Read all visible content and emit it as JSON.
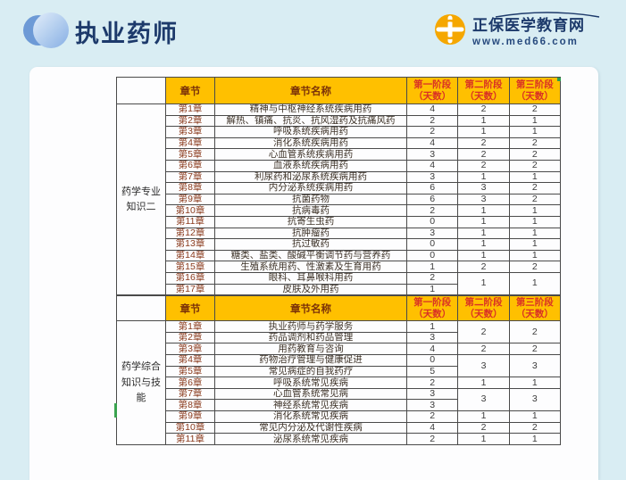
{
  "brand": {
    "title": "执业药师"
  },
  "site_logo": {
    "name": "正保医学教育网",
    "url_text": "www.med66.com",
    "icon": "med66-cross-icon"
  },
  "colors": {
    "background_blue": "#D9EDF3",
    "panel_white": "#FDFDFE",
    "header_orange": "#FFC000",
    "header_label_brown": "#7B3208",
    "header_phase_red": "#D93025",
    "brand_navy": "#1D3A6B",
    "chapter_red_brown": "#8A3A1C"
  },
  "tables": [
    {
      "group_label": "药学专业知识二",
      "headers": [
        "章节",
        "章节名称",
        "第一阶段\n（天数）",
        "第二阶段\n（天数）",
        "第三阶段\n（天数）"
      ],
      "rows": [
        [
          "第1章",
          "精神与中枢神经系统疾病用药",
          "4",
          "2",
          "2"
        ],
        [
          "第2章",
          "解热、镇痛、抗炎、抗风湿药及抗痛风药",
          "2",
          "1",
          "1"
        ],
        [
          "第3章",
          "呼吸系统疾病用药",
          "2",
          "1",
          "1"
        ],
        [
          "第4章",
          "消化系统疾病用药",
          "4",
          "2",
          "2"
        ],
        [
          "第5章",
          "心血管系统疾病用药",
          "3",
          "2",
          "2"
        ],
        [
          "第6章",
          "血液系统疾病用药",
          "4",
          "2",
          "2"
        ],
        [
          "第7章",
          "利尿药和泌尿系统疾病用药",
          "3",
          "1",
          "1"
        ],
        [
          "第8章",
          "内分泌系统疾病用药",
          "6",
          "3",
          "2"
        ],
        [
          "第9章",
          "抗菌药物",
          "6",
          "3",
          "2"
        ],
        [
          "第10章",
          "抗病毒药",
          "2",
          "1",
          "1"
        ],
        [
          "第11章",
          "抗寄生虫药",
          "0",
          "1",
          "1"
        ],
        [
          "第12章",
          "抗肿瘤药",
          "3",
          "1",
          "1"
        ],
        [
          "第13章",
          "抗过敏药",
          "0",
          "1",
          "1"
        ],
        [
          "第14章",
          "糖类、盐类、酸碱平衡调节药与营养药",
          "0",
          "1",
          "1"
        ],
        [
          "第15章",
          "生殖系统用药、性激素及生育用药",
          "1",
          "2",
          "2"
        ],
        [
          "第16章",
          "眼科、耳鼻喉科用药",
          "2",
          {
            "v": "1",
            "rs": 2
          },
          {
            "v": "1",
            "rs": 2
          }
        ],
        [
          "第17章",
          "皮肤及外用药",
          "1",
          null,
          null
        ]
      ]
    },
    {
      "group_label": "药学综合知识与技能",
      "headers": [
        "章节",
        "章节名称",
        "第一阶段\n（天数）",
        "第二阶段\n（天数）",
        "第三阶段\n（天数）"
      ],
      "rows": [
        [
          "第1章",
          "执业药师与药学服务",
          "1",
          {
            "v": "2",
            "rs": 2
          },
          {
            "v": "2",
            "rs": 2
          }
        ],
        [
          "第2章",
          "药品调剂和药品管理",
          "3",
          null,
          null
        ],
        [
          "第3章",
          "用药教育与咨询",
          "4",
          "2",
          "2"
        ],
        [
          "第4章",
          "药物治疗管理与健康促进",
          "0",
          {
            "v": "3",
            "rs": 2
          },
          {
            "v": "3",
            "rs": 2
          }
        ],
        [
          "第5章",
          "常见病症的自我药疗",
          "5",
          null,
          null
        ],
        [
          "第6章",
          "呼吸系统常见疾病",
          "2",
          "1",
          "1"
        ],
        [
          "第7章",
          "心血管系统常见病",
          "3",
          {
            "v": "3",
            "rs": 2
          },
          {
            "v": "3",
            "rs": 2
          }
        ],
        [
          "第8章",
          "神经系统常见疾病",
          "3",
          null,
          null
        ],
        [
          "第9章",
          "消化系统常见疾病",
          "2",
          "1",
          "1"
        ],
        [
          "第10章",
          "常见内分泌及代谢性疾病",
          "4",
          "2",
          "2"
        ],
        [
          "第11章",
          "泌尿系统常见疾病",
          "2",
          "1",
          "1"
        ]
      ]
    }
  ]
}
